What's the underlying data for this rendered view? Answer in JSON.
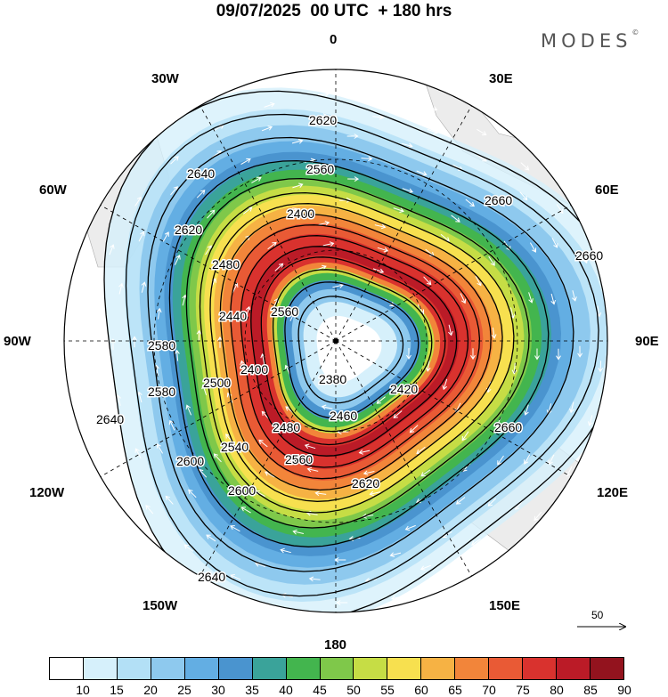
{
  "title": "09/07/2025  00 UTC  + 180 hrs",
  "brand": {
    "name": "MODES",
    "mark": "©"
  },
  "longitude_labels": [
    "0",
    "30E",
    "60E",
    "90E",
    "120E",
    "150E",
    "180",
    "150W",
    "120W",
    "90W",
    "60W",
    "30W"
  ],
  "contours": {
    "unit_label": "",
    "levels": [
      "2380",
      "2400",
      "2420",
      "2440",
      "2460",
      "2480",
      "2500",
      "2540",
      "2560",
      "2580",
      "2600",
      "2620",
      "2640",
      "2660"
    ]
  },
  "wind_scale": {
    "value": "50"
  },
  "colorbar": {
    "ticks": [
      "10",
      "15",
      "20",
      "25",
      "30",
      "35",
      "40",
      "45",
      "50",
      "55",
      "60",
      "65",
      "70",
      "75",
      "80",
      "85",
      "90"
    ],
    "colors": [
      "#ffffff",
      "#d6f0fb",
      "#b3e0f6",
      "#8ec9ee",
      "#63aee3",
      "#4a94cf",
      "#3aa39a",
      "#43b54e",
      "#7fc84a",
      "#c6dd45",
      "#f7e04f",
      "#f6b244",
      "#f2853a",
      "#e95a35",
      "#d9322e",
      "#bb1b27",
      "#93131e"
    ]
  }
}
